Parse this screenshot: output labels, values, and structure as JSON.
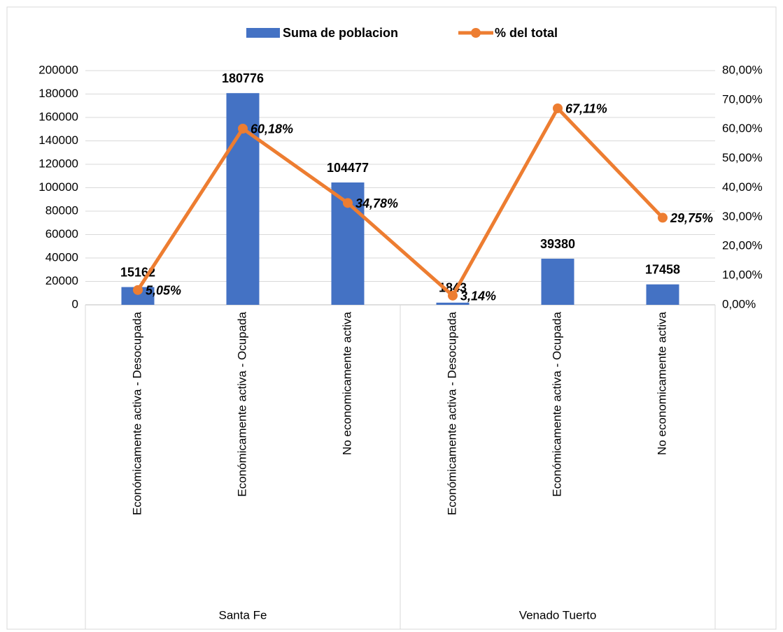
{
  "chart_data": {
    "type": "bar",
    "categories": [
      "Económicamente activa - Desocupada",
      "Económicamente activa - Ocupada",
      "No economicamente activa",
      "Económicamente activa - Desocupada",
      "Económicamente activa - Ocupada",
      "No economicamente activa"
    ],
    "groups": [
      "Santa Fe",
      "Venado Tuerto"
    ],
    "series": [
      {
        "name": "Suma de poblacion",
        "type": "bar",
        "color": "#4472c4",
        "values": [
          15162,
          180776,
          104477,
          1843,
          39380,
          17458
        ]
      },
      {
        "name": "% del total",
        "type": "line",
        "axis": "y2",
        "color": "#ed7d31",
        "values": [
          5.05,
          60.18,
          34.78,
          3.14,
          67.11,
          29.75
        ],
        "value_labels": [
          "5,05%",
          "60,18%",
          "34,78%",
          "3,14%",
          "67,11%",
          "29,75%"
        ]
      }
    ],
    "ylim": [
      0,
      200000
    ],
    "yticks": [
      0,
      20000,
      40000,
      60000,
      80000,
      100000,
      120000,
      140000,
      160000,
      180000,
      200000
    ],
    "y2lim": [
      0,
      80
    ],
    "y2ticks": [
      {
        "value": 0,
        "label": "0,00%"
      },
      {
        "value": 10,
        "label": "10,00%"
      },
      {
        "value": 20,
        "label": "20,00%"
      },
      {
        "value": 30,
        "label": "30,00%"
      },
      {
        "value": 40,
        "label": "40,00%"
      },
      {
        "value": 50,
        "label": "50,00%"
      },
      {
        "value": 60,
        "label": "60,00%"
      },
      {
        "value": 70,
        "label": "70,00%"
      },
      {
        "value": 80,
        "label": "80,00%"
      }
    ],
    "grid": true,
    "legend": "top"
  }
}
